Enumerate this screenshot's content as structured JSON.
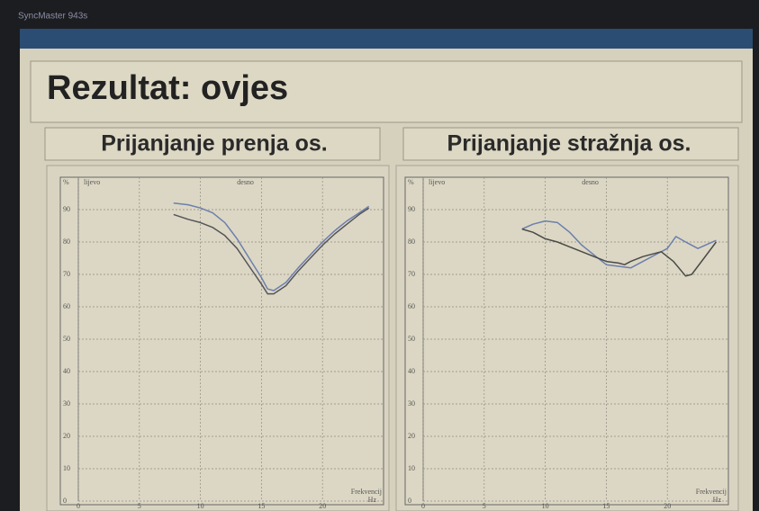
{
  "monitor": "SyncMaster 943s",
  "title": "Rezultat: ovjes",
  "chart_data": [
    {
      "type": "line",
      "title": "Prijanjanje prenja os.",
      "ylabel": "%",
      "xlabel": "Frekvencij",
      "xunit": "Hz",
      "xlim": [
        0,
        25
      ],
      "xticks": [
        0,
        5,
        10,
        15,
        20
      ],
      "ylim": [
        0,
        100
      ],
      "yticks": [
        0,
        10,
        20,
        30,
        40,
        50,
        60,
        70,
        80,
        90
      ],
      "grid": true,
      "series": [
        {
          "name": "lijevo",
          "color": "#6b7fae",
          "x": [
            7.8,
            9,
            10,
            11,
            12,
            13,
            14,
            15,
            15.5,
            16,
            17,
            18,
            19,
            20,
            21,
            22,
            23,
            23.8
          ],
          "values": [
            92,
            91.5,
            90.5,
            89,
            86,
            81,
            75,
            69,
            65.5,
            65,
            67.5,
            72,
            76,
            80,
            83.5,
            86.5,
            89,
            91
          ]
        },
        {
          "name": "desno",
          "color": "#55555a",
          "x": [
            7.8,
            9,
            10,
            11,
            12,
            13,
            14,
            15,
            15.5,
            16,
            17,
            18,
            19,
            20,
            21,
            22,
            23,
            23.8
          ],
          "values": [
            88.5,
            87,
            86,
            84.5,
            82,
            78,
            72.5,
            67,
            64,
            64,
            66.5,
            71,
            75,
            79,
            82.5,
            85.5,
            88.5,
            90.5
          ]
        }
      ]
    },
    {
      "type": "line",
      "title": "Prijanjanje stražnja os.",
      "ylabel": "%",
      "xlabel": "Frekvencij",
      "xunit": "Hz",
      "xlim": [
        0,
        25
      ],
      "xticks": [
        0,
        5,
        10,
        15,
        20
      ],
      "ylim": [
        0,
        100
      ],
      "yticks": [
        0,
        10,
        20,
        30,
        40,
        50,
        60,
        70,
        80,
        90
      ],
      "grid": true,
      "series": [
        {
          "name": "lijevo",
          "color": "#6b7fae",
          "x": [
            8.1,
            9,
            10,
            11,
            12,
            13,
            14,
            15,
            16,
            17,
            18,
            19,
            20,
            20.7,
            21.5,
            22.5,
            24
          ],
          "values": [
            84,
            85.5,
            86.5,
            86,
            83,
            79,
            76,
            73,
            72.5,
            72,
            74,
            76,
            78,
            81.7,
            80,
            78,
            80.5
          ]
        },
        {
          "name": "desno",
          "color": "#4a4a48",
          "x": [
            8.1,
            9,
            10,
            11,
            12,
            13,
            14,
            15,
            16,
            16.5,
            17,
            18,
            19.5,
            20.5,
            21.5,
            22,
            23,
            24
          ],
          "values": [
            84,
            83,
            81,
            80,
            78.5,
            77,
            75.5,
            74,
            73.5,
            73,
            74,
            75.5,
            77,
            74,
            69.5,
            70,
            75,
            80
          ]
        }
      ]
    }
  ]
}
